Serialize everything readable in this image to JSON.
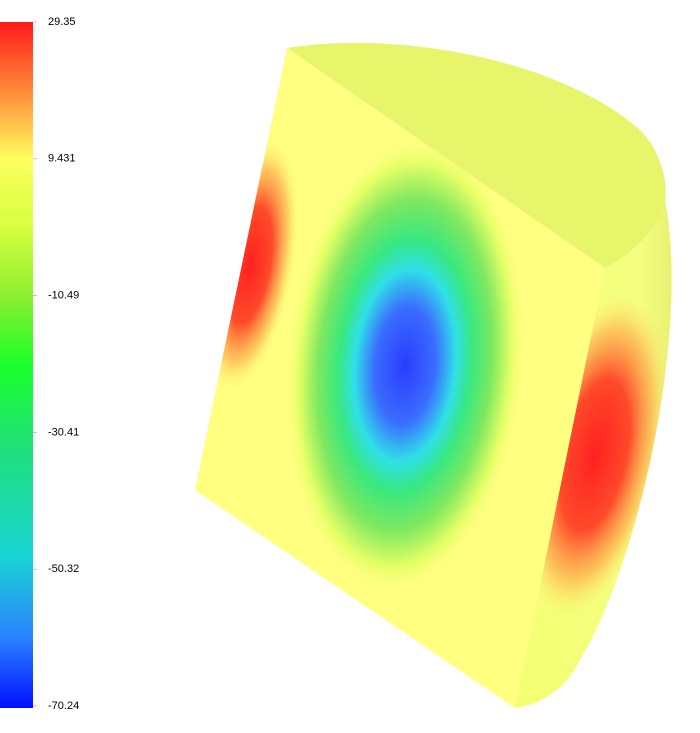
{
  "colorbar": {
    "ticks": [
      29.35,
      9.431,
      -10.49,
      -30.41,
      -50.32,
      -70.24
    ]
  }
}
